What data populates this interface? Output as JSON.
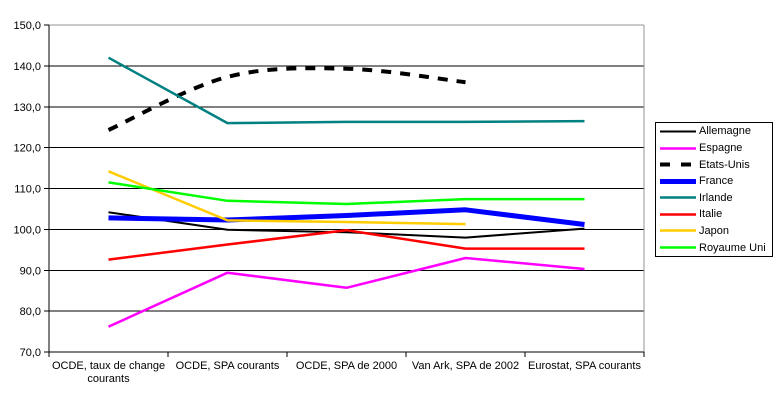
{
  "chart_data": {
    "type": "line",
    "title": "",
    "categories": [
      "OCDE, taux de change courants",
      "OCDE, SPA courants",
      "OCDE, SPA de 2000",
      "Van Ark, SPA de 2002",
      "Eurostat, SPA courants"
    ],
    "series": [
      {
        "name": "Allemagne",
        "color": "#000000",
        "width": 2,
        "dash": null,
        "smooth": false,
        "values": [
          104.2,
          99.9,
          99.3,
          98.0,
          100.2
        ]
      },
      {
        "name": "Espagne",
        "color": "#FF00FF",
        "width": 2.5,
        "dash": null,
        "smooth": false,
        "values": [
          76.2,
          89.4,
          85.7,
          93.0,
          90.3
        ]
      },
      {
        "name": "Etats-Unis",
        "color": "#000000",
        "width": 4,
        "dash": "10 9",
        "smooth": true,
        "values": [
          124.3,
          137.3,
          139.3,
          136.0,
          null
        ]
      },
      {
        "name": "France",
        "color": "#0000FF",
        "width": 5,
        "dash": null,
        "smooth": false,
        "values": [
          102.8,
          102.3,
          103.4,
          104.8,
          101.2
        ]
      },
      {
        "name": "Irlande",
        "color": "#008080",
        "width": 2.5,
        "dash": null,
        "smooth": false,
        "values": [
          142.0,
          126.0,
          126.3,
          126.3,
          126.5
        ]
      },
      {
        "name": "Italie",
        "color": "#FF0000",
        "width": 2.5,
        "dash": null,
        "smooth": false,
        "values": [
          92.6,
          96.3,
          99.8,
          95.3,
          95.3
        ]
      },
      {
        "name": "Japon",
        "color": "#FFCC00",
        "width": 2.5,
        "dash": null,
        "smooth": false,
        "values": [
          114.2,
          102.2,
          101.8,
          101.3,
          null
        ]
      },
      {
        "name": "Royaume Uni",
        "color": "#00FF00",
        "width": 2.5,
        "dash": null,
        "smooth": false,
        "values": [
          111.5,
          107.0,
          106.2,
          107.4,
          107.4
        ]
      }
    ],
    "xlabel": "",
    "ylabel": "",
    "ylim": [
      70,
      150
    ],
    "ytick_step": 10,
    "ytick_labels": [
      "150,0",
      "140,0",
      "130,0",
      "120,0",
      "110,0",
      "100,0",
      "90,0",
      "80,0",
      "70,0"
    ],
    "grid": true,
    "gridline_color": "#000000",
    "border_color": "#969696",
    "axis_color": "#000000",
    "legend_position": "right"
  }
}
